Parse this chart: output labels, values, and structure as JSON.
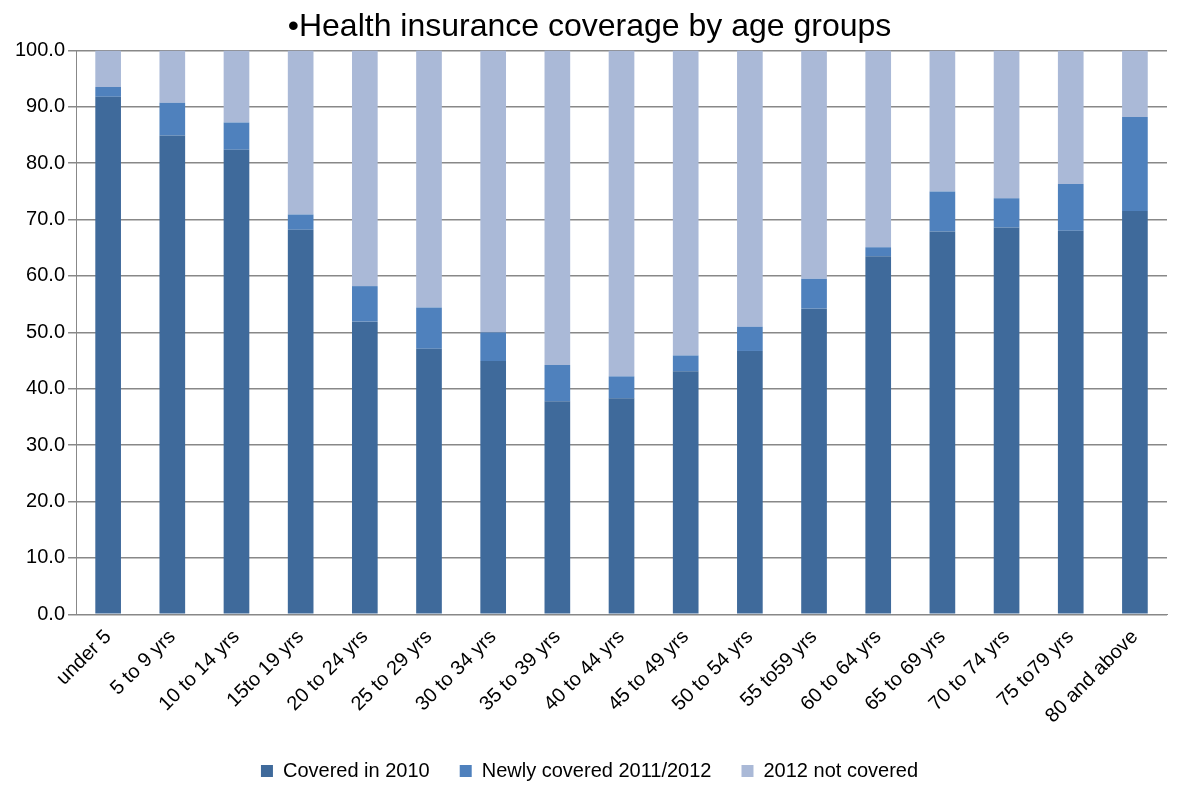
{
  "chart_data": {
    "type": "bar",
    "title": "•Health insurance coverage by age groups",
    "stacked": true,
    "categories": [
      "under 5",
      "5 to 9 yrs",
      "10 to 14 yrs",
      "15to 19 yrs",
      "20 to 24 yrs",
      "25 to 29 yrs",
      "30 to 34 yrs",
      "35 to 39 yrs",
      "40 to 44 yrs",
      "45 to 49 yrs",
      "50 to 54 yrs",
      "55 to59 yrs",
      "60 to 64 yrs",
      "65 to 69 yrs",
      "70 to 74 yrs",
      "75 to79 yrs",
      "80 and above"
    ],
    "series": [
      {
        "name": "Covered in 2010",
        "color": "#3f6a9b",
        "values": [
          91.8,
          84.9,
          82.4,
          68.2,
          51.9,
          47.1,
          44.9,
          37.8,
          38.3,
          43.1,
          46.7,
          54.2,
          63.5,
          67.9,
          68.6,
          68.0,
          71.5
        ]
      },
      {
        "name": "Newly covered 2011/2012",
        "color": "#4f81bd",
        "values": [
          1.7,
          5.8,
          4.8,
          2.7,
          6.3,
          7.3,
          5.1,
          6.4,
          3.9,
          2.8,
          4.3,
          5.3,
          1.6,
          7.1,
          5.2,
          8.3,
          16.7
        ]
      },
      {
        "name": "2012 not covered",
        "color": "#aab9d7",
        "values": [
          6.5,
          9.3,
          12.8,
          29.1,
          41.8,
          45.6,
          50.0,
          55.8,
          57.8,
          54.1,
          49.0,
          40.5,
          34.9,
          25.0,
          26.2,
          23.7,
          11.8
        ]
      }
    ],
    "ylim": [
      0,
      100
    ],
    "yticks": [
      {
        "value": 0,
        "label": "0.0"
      },
      {
        "value": 10,
        "label": "10.0"
      },
      {
        "value": 20,
        "label": "20.0"
      },
      {
        "value": 30,
        "label": "30.0"
      },
      {
        "value": 40,
        "label": "40.0"
      },
      {
        "value": 50,
        "label": "50.0"
      },
      {
        "value": 60,
        "label": "60.0"
      },
      {
        "value": 70,
        "label": "70.0"
      },
      {
        "value": 80,
        "label": "80.0"
      },
      {
        "value": 90,
        "label": "90.0"
      },
      {
        "value": 100,
        "label": "100.0"
      }
    ],
    "grid": "y",
    "legend": "bottom"
  }
}
